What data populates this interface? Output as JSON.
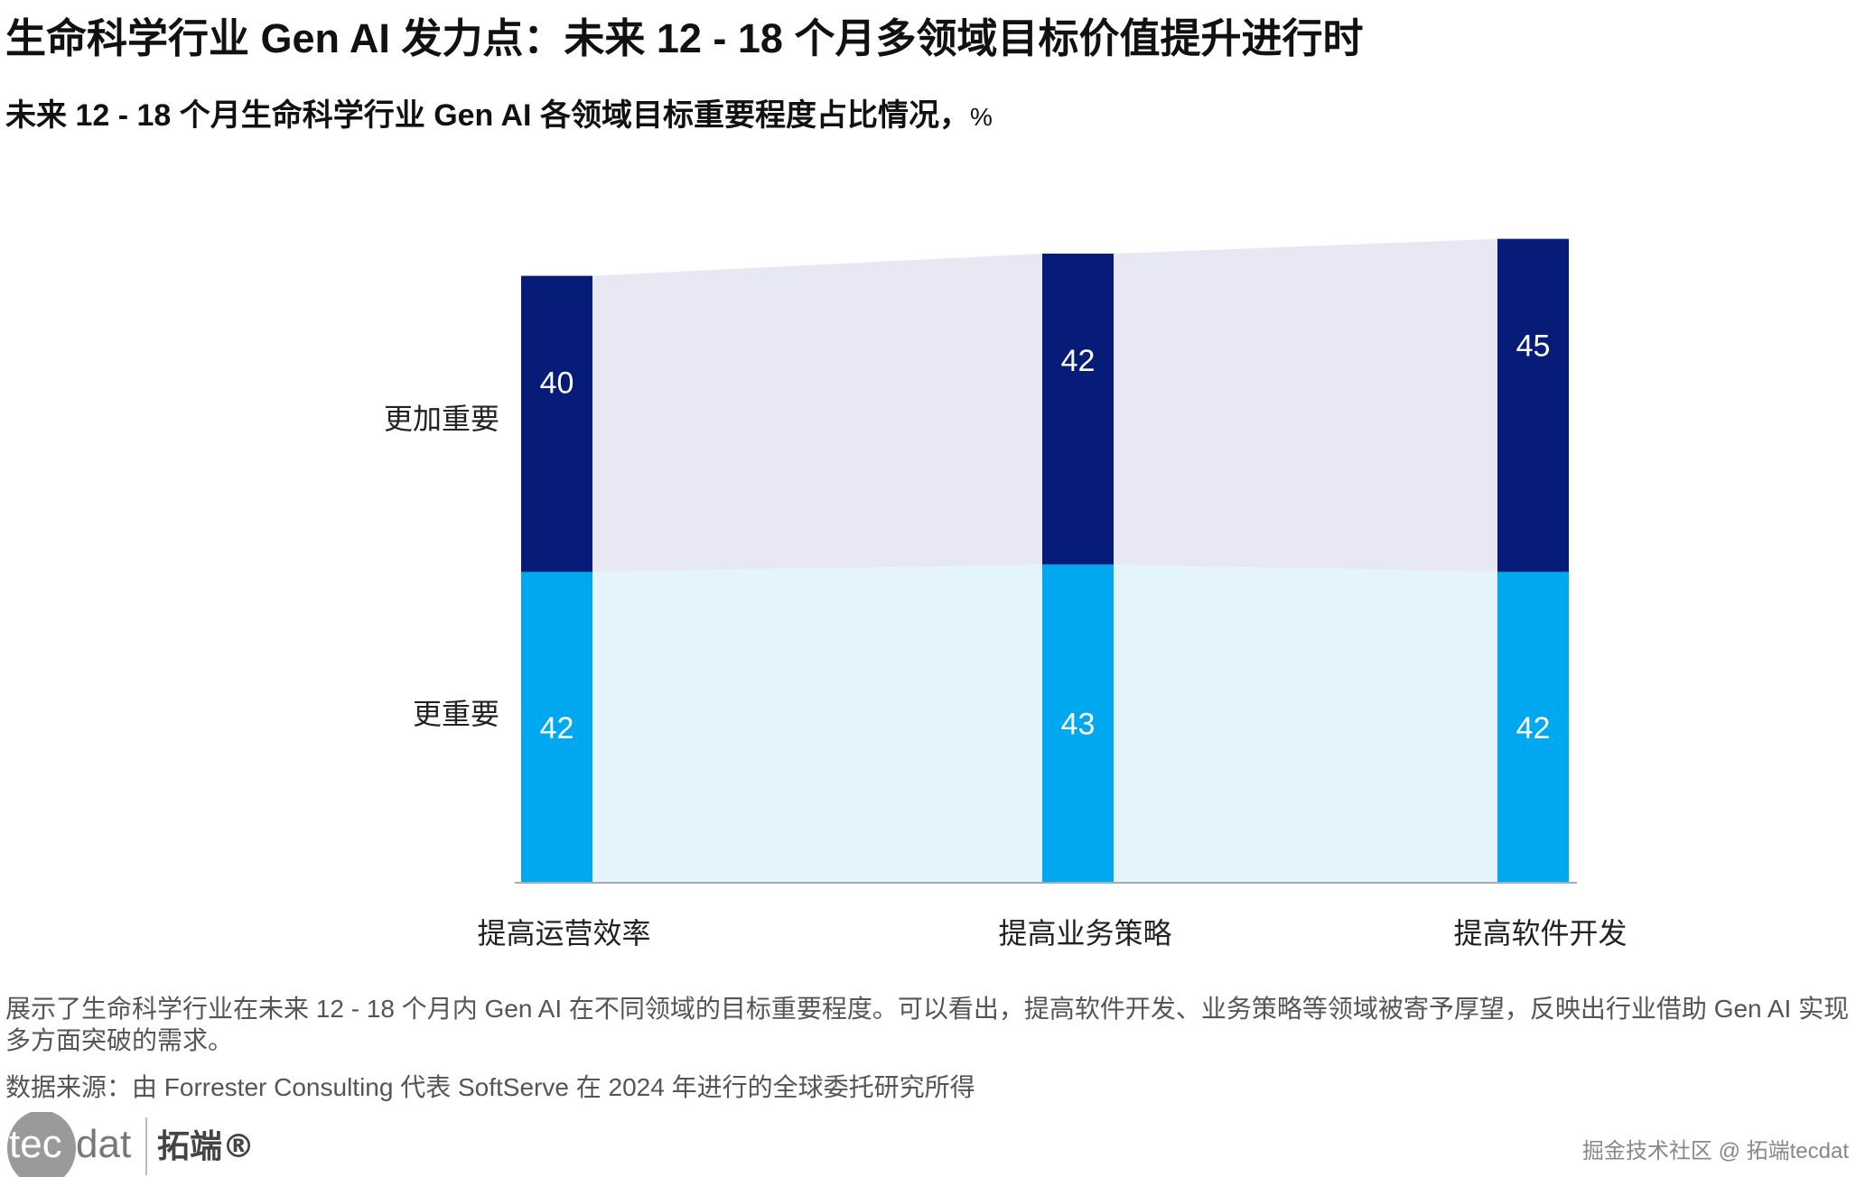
{
  "title": "生命科学行业 Gen AI 发力点：未来 12 - 18 个月多领域目标价值提升进行时",
  "chart_data": {
    "type": "bar",
    "stacked": true,
    "title": "未来 12 - 18 个月生命科学行业 Gen AI 各领域目标重要程度占比情况，",
    "unit": "%",
    "categories": [
      "提高运营效率",
      "提高业务策略",
      "提高软件开发"
    ],
    "series": [
      {
        "name": "更重要",
        "values": [
          42,
          43,
          42
        ],
        "color": "#00a8f0",
        "band_color": "#e3f4fc"
      },
      {
        "name": "更加重要",
        "values": [
          40,
          42,
          45
        ],
        "color": "#061c78",
        "band_color": "#e8e8f4"
      }
    ],
    "legend": "left",
    "grid": false
  },
  "caption": "展示了生命科学行业在未来 12 - 18 个月内 Gen AI 在不同领域的目标重要程度。可以看出，提高软件开发、业务策略等领域被寄予厚望，反映出行业借助 Gen AI 实现多方面突破的需求。",
  "source": "数据来源：由 Forrester Consulting 代表 SoftServe 在 2024 年进行的全球委托研究所得",
  "logo": {
    "text": "tecdat",
    "cn": "拓端®"
  },
  "watermark": "掘金技术社区 @ 拓端tecdat"
}
